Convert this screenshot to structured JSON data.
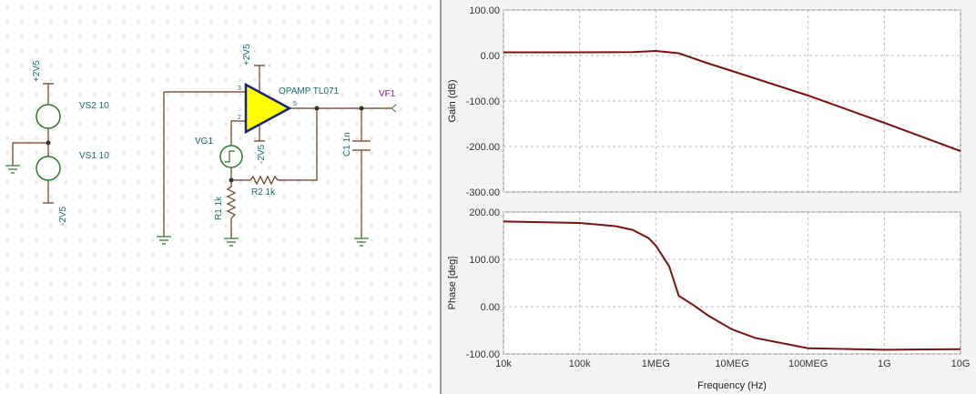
{
  "schematic": {
    "labels": [
      "+2V5",
      "VS2 10",
      "VS1 10",
      "-2V5",
      "+2V5",
      "-2V5",
      "OPAMP TL071",
      "VG1",
      "R2 1k",
      "R1 1k",
      "C1 1n",
      "VF1",
      "3",
      "2",
      "5"
    ]
  },
  "chart_data": [
    {
      "type": "line",
      "y_label": "Gain (dB)",
      "log_x": true,
      "grid": true,
      "x": [
        10000,
        100000,
        500000,
        1000000,
        2000000,
        5000000,
        10000000,
        100000000,
        1000000000,
        10000000000
      ],
      "series": [
        {
          "name": "Gain",
          "color": "#7a1212",
          "values": [
            7,
            7,
            7.5,
            10,
            5,
            -18,
            -34,
            -88,
            -148,
            -210
          ]
        }
      ],
      "xlim": [
        10000,
        10000000000
      ],
      "xticks": [
        10000,
        100000,
        1000000,
        10000000,
        100000000,
        1000000000,
        10000000000
      ],
      "ylim": [
        -300,
        100
      ],
      "yticks": [
        {
          "value": 100,
          "label": "100.00"
        },
        {
          "value": 0,
          "label": "0.00"
        },
        {
          "value": -100,
          "label": "-100.00"
        },
        {
          "value": -200,
          "label": "-200.00"
        },
        {
          "value": -300,
          "label": "-300.00"
        }
      ]
    },
    {
      "type": "line",
      "y_label": "Phase [deg]",
      "x_label": "Frequency (Hz)",
      "log_x": true,
      "grid": true,
      "x": [
        10000,
        100000,
        300000,
        500000,
        800000,
        1000000,
        1500000,
        2000000,
        3000000,
        5000000,
        10000000,
        20000000,
        100000000,
        1000000000,
        10000000000
      ],
      "series": [
        {
          "name": "Phase",
          "color": "#7a1212",
          "values": [
            180,
            177,
            170,
            162,
            145,
            129,
            85,
            23,
            5,
            -20,
            -48,
            -66,
            -88,
            -91,
            -90
          ]
        }
      ],
      "xlim": [
        10000,
        10000000000
      ],
      "xticks": [
        {
          "value": 10000,
          "label": "10k"
        },
        {
          "value": 100000,
          "label": "100k"
        },
        {
          "value": 1000000,
          "label": "1MEG"
        },
        {
          "value": 10000000,
          "label": "10MEG"
        },
        {
          "value": 100000000,
          "label": "100MEG"
        },
        {
          "value": 1000000000,
          "label": "1G"
        },
        {
          "value": 10000000000,
          "label": "10G"
        }
      ],
      "ylim": [
        -100,
        200
      ],
      "yticks": [
        {
          "value": 200,
          "label": "200.00"
        },
        {
          "value": 100,
          "label": "100.00"
        },
        {
          "value": 0,
          "label": "0.00"
        },
        {
          "value": -100,
          "label": "-100.00"
        }
      ]
    }
  ]
}
